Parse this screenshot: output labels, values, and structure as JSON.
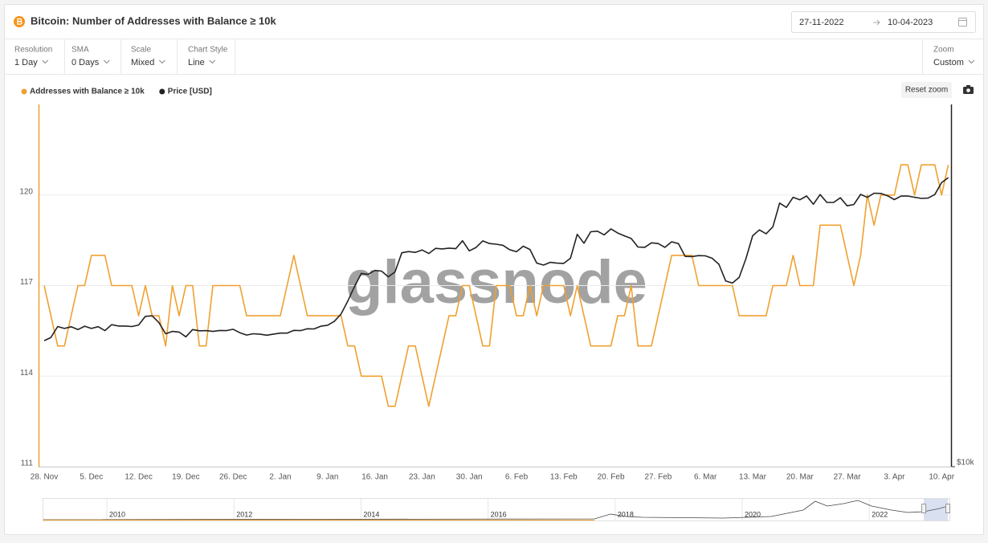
{
  "header": {
    "date_from": "27-11-2022",
    "date_to": "10-04-2023"
  },
  "toolbar": {
    "controls": [
      {
        "label": "Resolution",
        "value": "1 Day"
      },
      {
        "label": "SMA",
        "value": "0 Days"
      },
      {
        "label": "Scale",
        "value": "Mixed"
      },
      {
        "label": "Chart Style",
        "value": "Line"
      }
    ],
    "zoom": {
      "label": "Zoom",
      "value": "Custom"
    }
  },
  "reset_zoom": "Reset zoom",
  "watermark": "glassnode",
  "navigator": {
    "labels": [
      "2010",
      "2012",
      "2014",
      "2016",
      "2018",
      "2020",
      "2022"
    ]
  },
  "chart_data": {
    "type": "line",
    "title": "Bitcoin: Number of Addresses with Balance ≥ 10k",
    "categories": [
      "28. Nov",
      null,
      null,
      null,
      null,
      null,
      null,
      "5. Dec",
      null,
      null,
      null,
      null,
      null,
      null,
      "12. Dec",
      null,
      null,
      null,
      null,
      null,
      null,
      "19. Dec",
      null,
      null,
      null,
      null,
      null,
      null,
      "26. Dec",
      null,
      null,
      null,
      null,
      null,
      null,
      "2. Jan",
      null,
      null,
      null,
      null,
      null,
      null,
      "9. Jan",
      null,
      null,
      null,
      null,
      null,
      null,
      "16. Jan",
      null,
      null,
      null,
      null,
      null,
      null,
      "23. Jan",
      null,
      null,
      null,
      null,
      null,
      null,
      "30. Jan",
      null,
      null,
      null,
      null,
      null,
      null,
      "6. Feb",
      null,
      null,
      null,
      null,
      null,
      null,
      "13. Feb",
      null,
      null,
      null,
      null,
      null,
      null,
      "20. Feb",
      null,
      null,
      null,
      null,
      null,
      null,
      "27. Feb",
      null,
      null,
      null,
      null,
      null,
      null,
      "6. Mar",
      null,
      null,
      null,
      null,
      null,
      null,
      "13. Mar",
      null,
      null,
      null,
      null,
      null,
      null,
      "20. Mar",
      null,
      null,
      null,
      null,
      null,
      null,
      "27. Mar",
      null,
      null,
      null,
      null,
      null,
      null,
      "3. Apr",
      null,
      null,
      null,
      null,
      null,
      null,
      "10. Apr",
      null
    ],
    "series": [
      {
        "name": "Addresses with Balance ≥ 10k",
        "color": "#f0a030",
        "values": [
          117,
          116,
          115,
          115,
          116,
          117,
          117,
          118,
          118,
          118,
          117,
          117,
          117,
          117,
          116,
          117,
          116,
          116,
          115,
          117,
          116,
          117,
          117,
          115,
          115,
          117,
          117,
          117,
          117,
          117,
          116,
          116,
          116,
          116,
          116,
          116,
          117,
          118,
          117,
          116,
          116,
          116,
          116,
          116,
          116,
          115,
          115,
          114,
          114,
          114,
          114,
          113,
          113,
          114,
          115,
          115,
          114,
          113,
          114,
          115,
          116,
          116,
          117,
          117,
          116,
          115,
          115,
          117,
          117,
          117,
          116,
          116,
          117,
          116,
          117,
          117,
          117,
          117,
          116,
          117,
          116,
          115,
          115,
          115,
          115,
          116,
          116,
          117,
          115,
          115,
          115,
          116,
          117,
          118,
          118,
          118,
          118,
          117,
          117,
          117,
          117,
          117,
          117,
          116,
          116,
          116,
          116,
          116,
          117,
          117,
          117,
          118,
          117,
          117,
          117,
          119,
          119,
          119,
          119,
          118,
          117,
          118,
          120,
          119,
          120,
          120,
          120,
          121,
          121,
          120,
          121,
          121,
          121,
          120,
          121
        ]
      },
      {
        "name": "Price [USD]",
        "color": "#222222",
        "axis": "y2",
        "values": [
          16200,
          16400,
          17100,
          16970,
          17080,
          16900,
          17120,
          16970,
          17090,
          16830,
          17220,
          17130,
          17130,
          17100,
          17200,
          17780,
          17810,
          17360,
          16630,
          16780,
          16740,
          16440,
          16900,
          16820,
          16830,
          16780,
          16840,
          16830,
          16920,
          16700,
          16550,
          16630,
          16600,
          16540,
          16610,
          16670,
          16670,
          16850,
          16830,
          16950,
          16940,
          17120,
          17180,
          17440,
          17940,
          18850,
          19930,
          20950,
          20870,
          21190,
          21140,
          20680,
          21070,
          22670,
          22780,
          22710,
          22920,
          22610,
          23060,
          23010,
          23080,
          23030,
          23740,
          22840,
          23140,
          23730,
          23490,
          23430,
          23330,
          22940,
          22760,
          23250,
          22960,
          21800,
          21630,
          21860,
          21790,
          21770,
          22200,
          24330,
          23520,
          24570,
          24630,
          24280,
          24840,
          24450,
          24190,
          23950,
          23180,
          23150,
          23550,
          23490,
          23150,
          23650,
          23480,
          22360,
          22350,
          22430,
          22410,
          22200,
          21700,
          20360,
          20190,
          20630,
          22160,
          24200,
          24750,
          24380,
          25050,
          27420,
          26970,
          28040,
          27770,
          28180,
          27300,
          28330,
          27490,
          27490,
          27990,
          27140,
          27270,
          28350,
          28030,
          28480,
          28450,
          28200,
          27790,
          28170,
          28180,
          28040,
          27920,
          27950,
          28330,
          29650,
          30230
        ]
      }
    ],
    "ylim": [
      111,
      123
    ],
    "yticks": [
      111,
      114,
      117,
      120
    ],
    "y2lim": [
      10000,
      40000
    ],
    "y2ticks": [
      {
        "value": 10000,
        "label": "$10k"
      }
    ],
    "y2scale": "log",
    "grid": true,
    "legend": "top-left"
  }
}
